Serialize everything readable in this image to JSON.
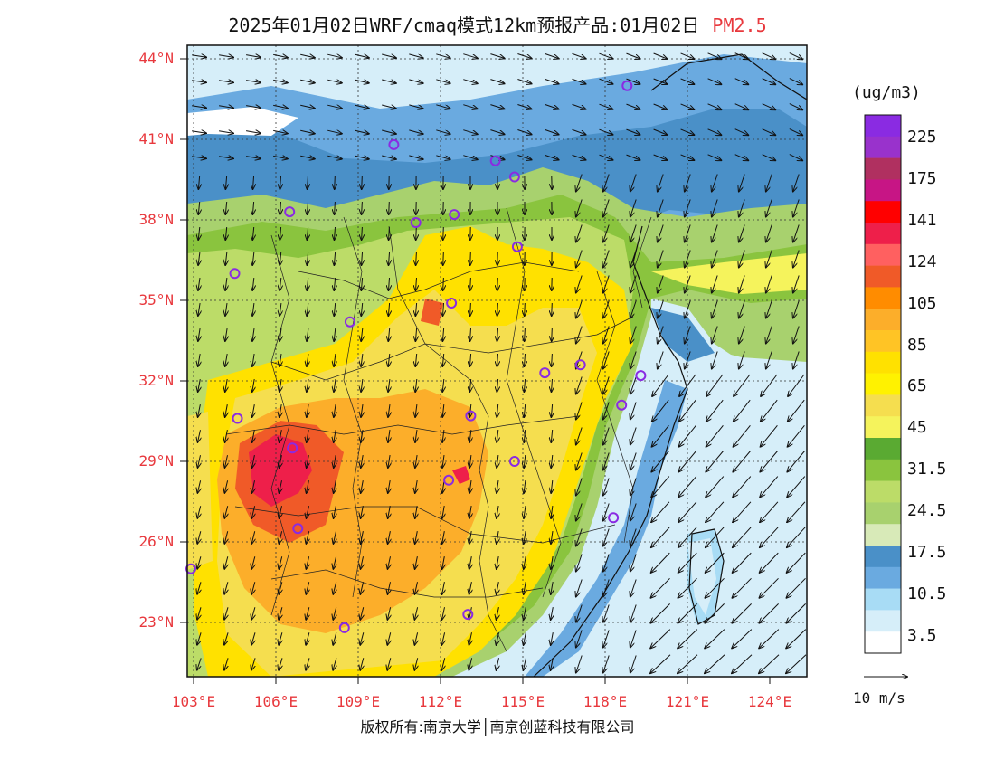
{
  "title": {
    "main": "2025年01月02日WRF/cmaq模式12km预报产品:01月02日",
    "variable": "PM2.5"
  },
  "axes": {
    "lat_labels": [
      "44°N",
      "41°N",
      "38°N",
      "35°N",
      "32°N",
      "29°N",
      "26°N",
      "23°N"
    ],
    "lon_labels": [
      "103°E",
      "106°E",
      "109°E",
      "112°E",
      "115°E",
      "118°E",
      "121°E",
      "124°E"
    ]
  },
  "colorbar": {
    "unit": "(ug/m3)",
    "labels": [
      "225",
      "175",
      "141",
      "124",
      "105",
      "85",
      "65",
      "45",
      "31.5",
      "24.5",
      "17.5",
      "10.5",
      "3.5"
    ],
    "colors": [
      "#8a2be2",
      "#9932cc",
      "#b03060",
      "#c71585",
      "#ff0000",
      "#ee1f4a",
      "#ff6060",
      "#f05a28",
      "#ff8c00",
      "#fcae2a",
      "#ffc425",
      "#ffe100",
      "#fff200",
      "#f5de4f",
      "#f5f35c",
      "#5aaa32",
      "#8ac43e",
      "#bcdc68",
      "#a8d16e",
      "#d8eab8",
      "#4a90c8",
      "#6aaae0",
      "#a8dcf5",
      "#d6eef9",
      "#ffffff"
    ]
  },
  "wind": {
    "reference_label": "10 m/s"
  },
  "copyright": "版权所有:南京大学│南京创蓝科技有限公司",
  "stations": [
    {
      "lon": 118.8,
      "lat": 43.0
    },
    {
      "lon": 110.3,
      "lat": 40.8
    },
    {
      "lon": 114.0,
      "lat": 40.2
    },
    {
      "lon": 114.7,
      "lat": 39.6
    },
    {
      "lon": 106.5,
      "lat": 38.3
    },
    {
      "lon": 111.1,
      "lat": 37.9
    },
    {
      "lon": 112.5,
      "lat": 38.2
    },
    {
      "lon": 114.8,
      "lat": 37.0
    },
    {
      "lon": 104.5,
      "lat": 36.0
    },
    {
      "lon": 112.4,
      "lat": 34.9
    },
    {
      "lon": 108.7,
      "lat": 34.2
    },
    {
      "lon": 115.8,
      "lat": 32.3
    },
    {
      "lon": 117.1,
      "lat": 32.6
    },
    {
      "lon": 119.3,
      "lat": 32.2
    },
    {
      "lon": 118.6,
      "lat": 31.1
    },
    {
      "lon": 104.6,
      "lat": 30.6
    },
    {
      "lon": 113.1,
      "lat": 30.7
    },
    {
      "lon": 106.6,
      "lat": 29.5
    },
    {
      "lon": 112.3,
      "lat": 28.3
    },
    {
      "lon": 114.7,
      "lat": 29.0
    },
    {
      "lon": 106.8,
      "lat": 26.5
    },
    {
      "lon": 118.3,
      "lat": 26.9
    },
    {
      "lon": 102.9,
      "lat": 25.0
    },
    {
      "lon": 108.5,
      "lat": 22.8
    },
    {
      "lon": 113.0,
      "lat": 23.3
    }
  ]
}
